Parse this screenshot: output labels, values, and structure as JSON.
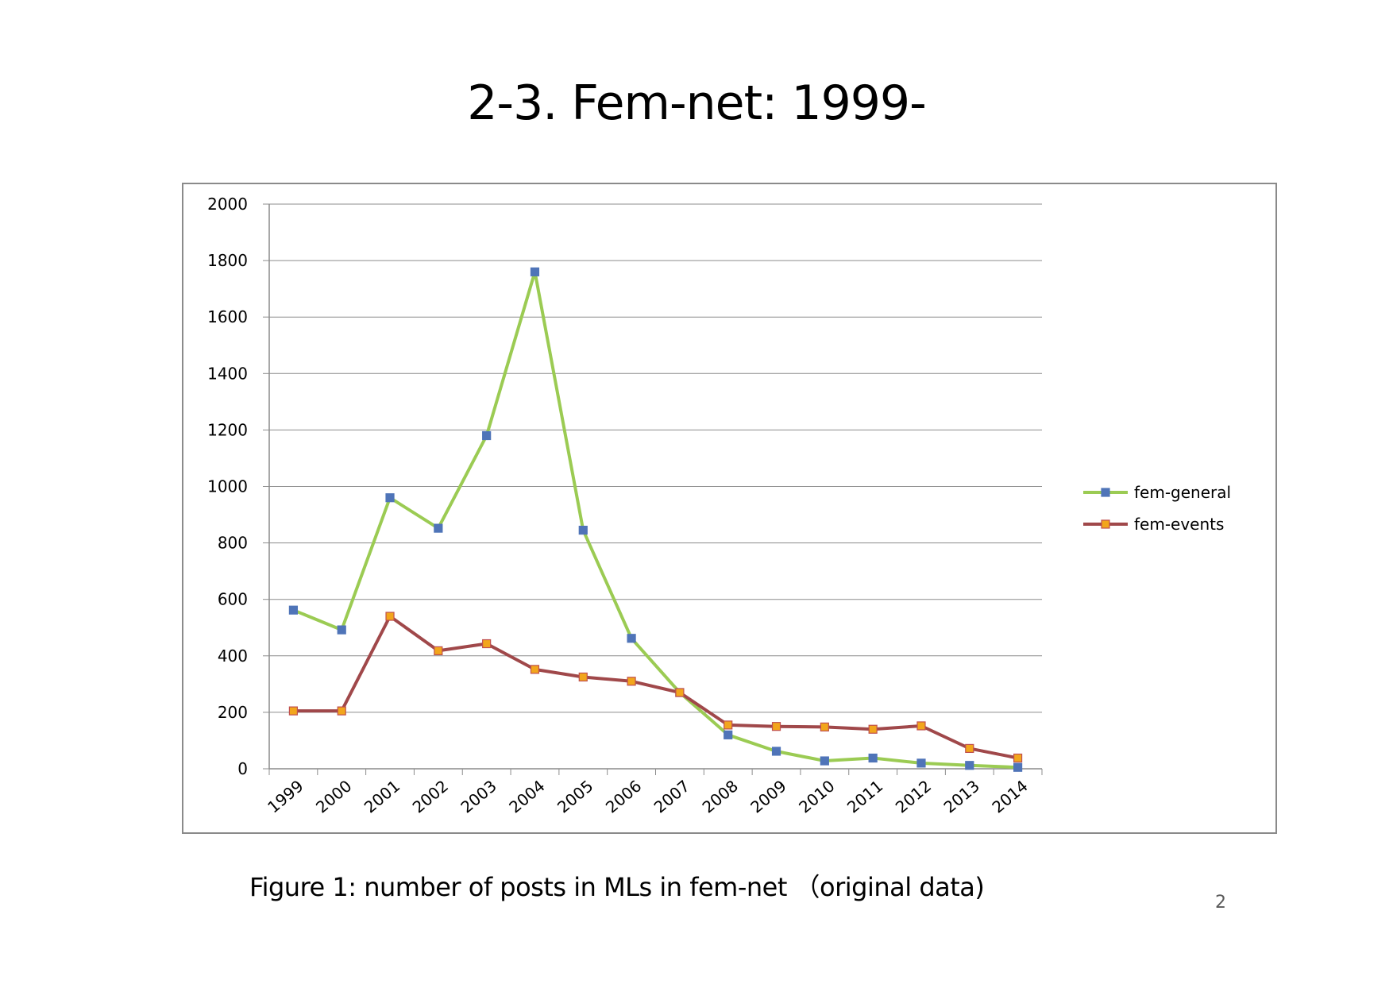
{
  "slide": {
    "title": "2-3. Fem-net: 1999-",
    "caption": "Figure 1: number of posts in MLs in fem-net （original data)",
    "page_number": "2"
  },
  "chart_data": {
    "type": "line",
    "title": "",
    "xlabel": "",
    "ylabel": "",
    "categories": [
      "1999",
      "2000",
      "2001",
      "2002",
      "2003",
      "2004",
      "2005",
      "2006",
      "2007",
      "2008",
      "2009",
      "2010",
      "2011",
      "2012",
      "2013",
      "2014"
    ],
    "ylim": [
      0,
      2000
    ],
    "yticks": [
      0,
      200,
      400,
      600,
      800,
      1000,
      1200,
      1400,
      1600,
      1800,
      2000
    ],
    "grid": true,
    "legend_position": "right",
    "series": [
      {
        "name": "fem-general",
        "line_color": "#9BCB53",
        "marker_color": "#4F74B8",
        "marker": "square",
        "values": [
          562,
          492,
          960,
          852,
          1180,
          1760,
          845,
          462,
          270,
          120,
          62,
          28,
          38,
          20,
          12,
          5
        ]
      },
      {
        "name": "fem-events",
        "line_color": "#A0484A",
        "marker_color": "#F2A61C",
        "marker": "square",
        "values": [
          205,
          205,
          540,
          418,
          443,
          352,
          325,
          310,
          270,
          155,
          150,
          148,
          140,
          152,
          72,
          38
        ]
      }
    ]
  }
}
